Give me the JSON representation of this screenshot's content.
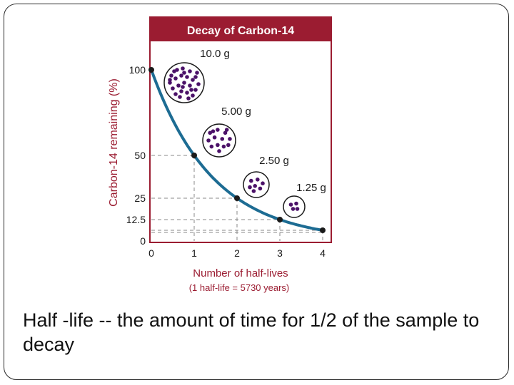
{
  "caption": "Half -life -- the amount of time for 1/2 of the sample to decay",
  "colors": {
    "frame": "#9b1c31",
    "title_bg": "#9b1c31",
    "title_text": "#ffffff",
    "axis_label": "#9b1c31",
    "curve": "#1d6c93",
    "atom": "#4b1168",
    "point": "#1a1a1a",
    "guide": "#8a8a8a"
  },
  "chart_data": {
    "type": "line",
    "title": "Decay of Carbon-14",
    "xlabel": "Number of half-lives",
    "xlabel_note": "(1 half-life = 5730 years)",
    "ylabel": "Carbon-14 remaining (%)",
    "xlim": [
      0,
      4.3
    ],
    "ylim": [
      0,
      100
    ],
    "x_ticks": [
      0,
      1,
      2,
      3,
      4
    ],
    "y_ticks": [
      0,
      12.5,
      25,
      50,
      100
    ],
    "y_tick_labels": [
      "0",
      "12.5",
      "25",
      "50",
      "100"
    ],
    "series": [
      {
        "x": [
          0,
          1,
          2,
          3,
          4
        ],
        "y": [
          100,
          50,
          25,
          12.5,
          6.25
        ]
      }
    ],
    "annotations": [
      {
        "x": 0,
        "label": "10.0 g",
        "atoms": 28
      },
      {
        "x": 1,
        "label": "5.00 g",
        "atoms": 14
      },
      {
        "x": 2,
        "label": "2.50 g",
        "atoms": 7
      },
      {
        "x": 3,
        "label": "1.25 g",
        "atoms": 4
      }
    ]
  }
}
